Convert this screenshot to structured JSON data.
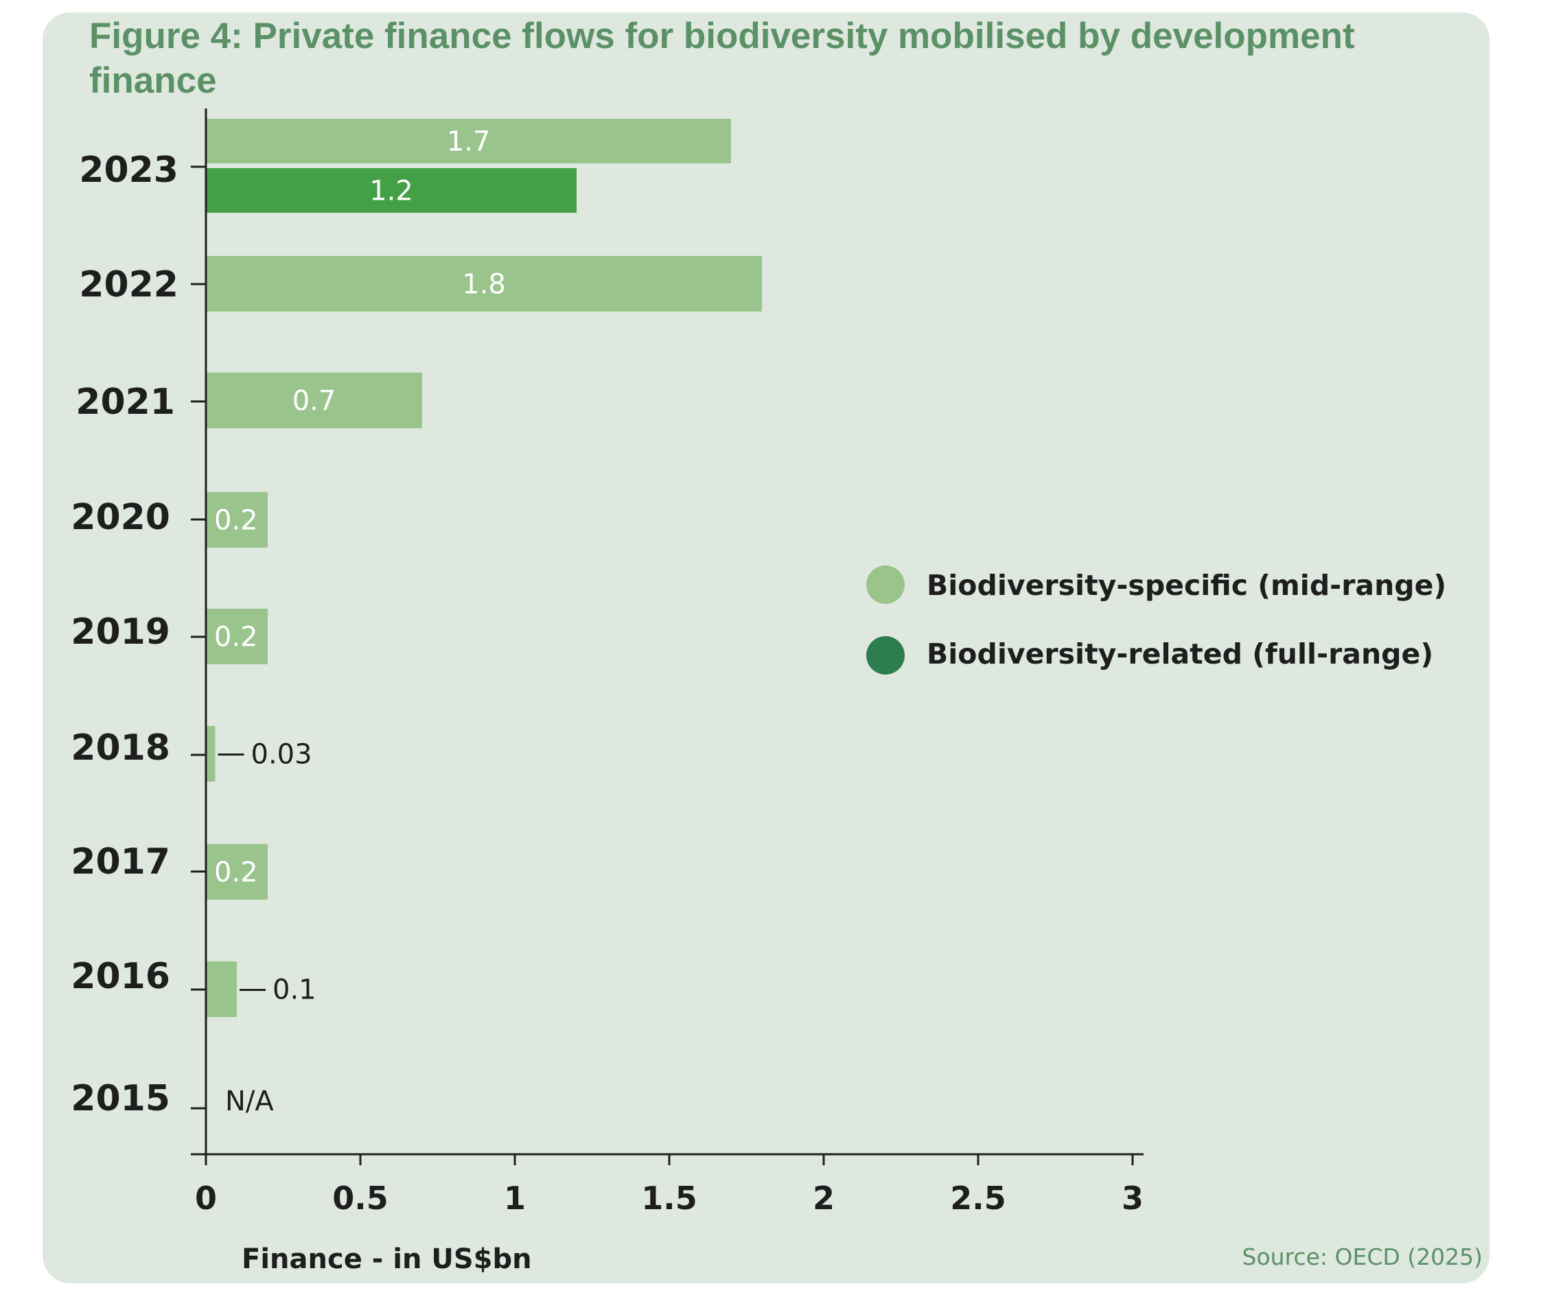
{
  "colors": {
    "background": "#dfe8df",
    "title": "#5b9166",
    "specific": "#99c48c",
    "related": "#43a046",
    "legend_related": "#2e7d4e",
    "axis": "#1e1e1e"
  },
  "source": "Source: OECD (2025)",
  "chart_data": {
    "type": "bar",
    "orientation": "horizontal",
    "title": "Figure 4: Private finance flows for biodiversity mobilised by development finance",
    "xlabel": "Finance - in US$bn",
    "ylabel": "",
    "xlim": [
      0,
      3
    ],
    "xticks": [
      "0",
      "0.5",
      "1",
      "1.5",
      "2",
      "2.5",
      "3"
    ],
    "categories": [
      "2023",
      "2022",
      "2021",
      "2020",
      "2019",
      "2018",
      "2017",
      "2016",
      "2015"
    ],
    "series": [
      {
        "name": "Biodiversity-specific (mid-range)",
        "values": [
          1.7,
          1.8,
          0.7,
          0.2,
          0.2,
          0.03,
          0.2,
          0.1,
          null
        ],
        "labels": [
          "1.7",
          "1.8",
          "0.7",
          "0.2",
          "0.2",
          "0.03",
          "0.2",
          "0.1",
          "N/A"
        ]
      },
      {
        "name": "Biodiversity-related (full-range)",
        "values": [
          1.2,
          null,
          null,
          null,
          null,
          null,
          null,
          null,
          null
        ],
        "labels": [
          "1.2",
          "",
          "",
          "",
          "",
          "",
          "",
          "",
          ""
        ]
      }
    ],
    "legend": "center-right"
  }
}
